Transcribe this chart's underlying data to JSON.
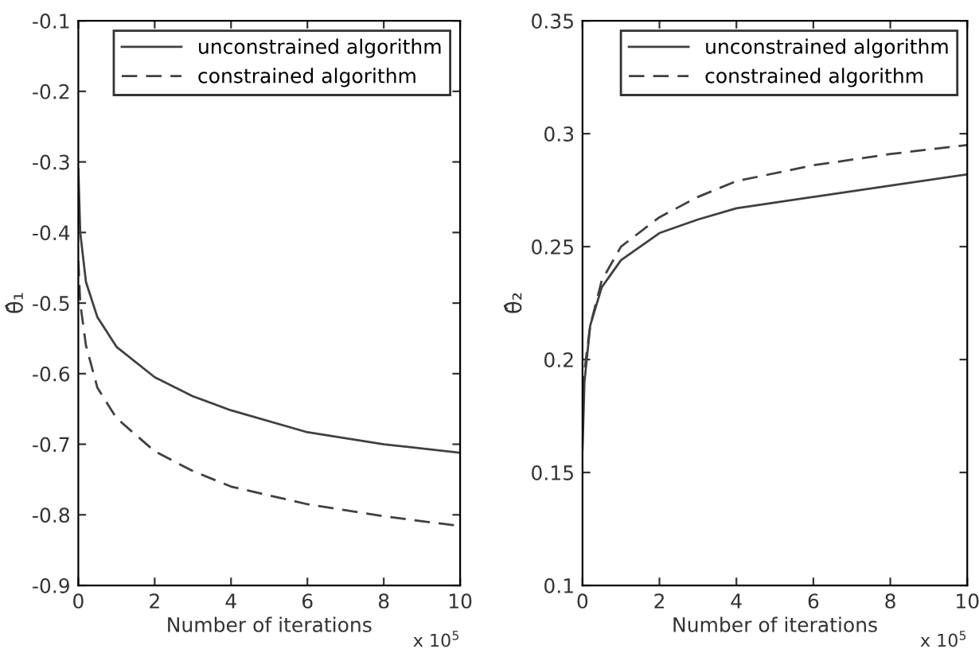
{
  "chart_data": [
    {
      "type": "line",
      "xlabel": "Number of iterations",
      "ylabel": "θ̂₁",
      "annotations": [
        "x 10$^{5}$"
      ],
      "xlim": [
        0,
        10
      ],
      "xticks": [
        0,
        2,
        4,
        6,
        8,
        10
      ],
      "ylim": [
        -0.9,
        -0.1
      ],
      "yticks": [
        -0.9,
        -0.8,
        -0.7,
        -0.6,
        -0.5,
        -0.4,
        -0.3,
        -0.2,
        -0.1
      ],
      "legend": "top right",
      "grid": false,
      "x": [
        0,
        0.05,
        0.2,
        0.5,
        1,
        2,
        3,
        4,
        6,
        8,
        10
      ],
      "series": [
        {
          "name": "unconstrained algorithm",
          "color": "#404040",
          "line_style": "solid",
          "values": [
            -0.31,
            -0.4,
            -0.47,
            -0.52,
            -0.562,
            -0.605,
            -0.632,
            -0.652,
            -0.683,
            -0.7,
            -0.712
          ]
        },
        {
          "name": "constrained algorithm",
          "color": "#404040",
          "line_style": "dashed",
          "values": [
            -0.44,
            -0.5,
            -0.56,
            -0.62,
            -0.663,
            -0.71,
            -0.738,
            -0.76,
            -0.785,
            -0.802,
            -0.816
          ]
        }
      ]
    },
    {
      "type": "line",
      "xlabel": "Number of iterations",
      "ylabel": "θ̂₂",
      "annotations": [
        "x 10$^{5}$"
      ],
      "xlim": [
        0,
        10
      ],
      "xticks": [
        0,
        2,
        4,
        6,
        8,
        10
      ],
      "ylim": [
        0.1,
        0.35
      ],
      "yticks": [
        0.1,
        0.15,
        0.2,
        0.25,
        0.3,
        0.35
      ],
      "legend": "top right",
      "grid": false,
      "x": [
        0,
        0.05,
        0.2,
        0.5,
        1,
        2,
        3,
        4,
        6,
        8,
        10
      ],
      "series": [
        {
          "name": "unconstrained algorithm",
          "color": "#404040",
          "line_style": "solid",
          "values": [
            0.16,
            0.19,
            0.215,
            0.232,
            0.244,
            0.256,
            0.262,
            0.267,
            0.272,
            0.277,
            0.282
          ]
        },
        {
          "name": "constrained algorithm",
          "color": "#404040",
          "line_style": "dashed",
          "values": [
            0.175,
            0.195,
            0.215,
            0.235,
            0.25,
            0.263,
            0.272,
            0.279,
            0.286,
            0.291,
            0.295
          ]
        }
      ]
    }
  ]
}
